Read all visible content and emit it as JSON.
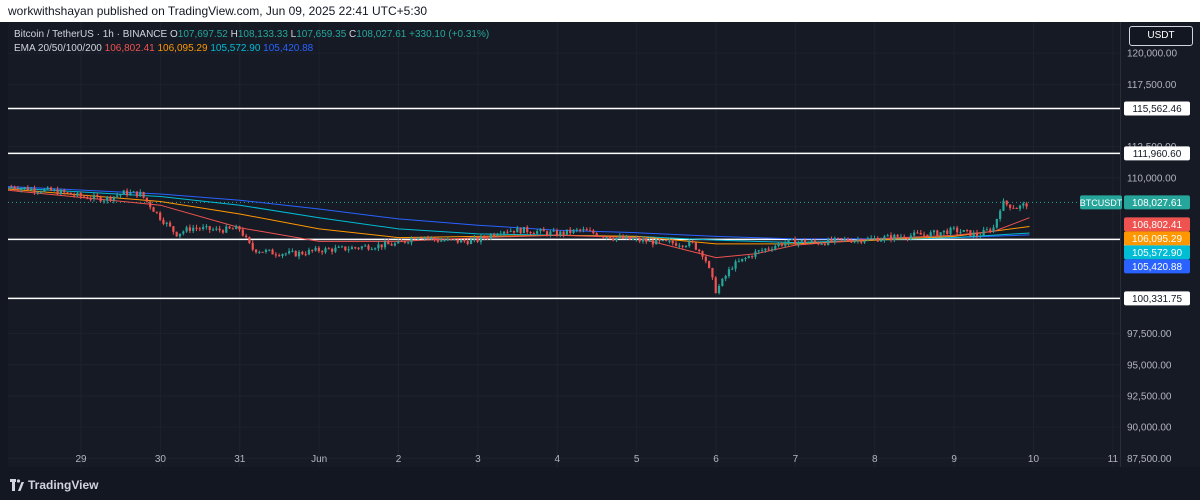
{
  "header": {
    "publisher_text": "workwithshayan published on TradingView.com, Jun 09, 2025 22:41 UTC+5:30"
  },
  "legend": {
    "symbol": "Bitcoin / TetherUS · 1h · BINANCE",
    "ohlc": [
      {
        "label": "O",
        "value": "107,697.52"
      },
      {
        "label": "H",
        "value": "108,133.33"
      },
      {
        "label": "L",
        "value": "107,659.35"
      },
      {
        "label": "C",
        "value": "108,027.61"
      }
    ],
    "change": "+330.10 (+0.31%)",
    "ema_title": "EMA 20/50/100/200",
    "ema_values": [
      "106,802.41",
      "106,095.29",
      "105,572.90",
      "105,420.88"
    ]
  },
  "currency_button": "USDT",
  "footer": {
    "brand": "TradingView"
  },
  "colors": {
    "up": "#26a69a",
    "down": "#ef5350",
    "ema20": "#ef5350",
    "ema50": "#ff9800",
    "ema100": "#00bcd4",
    "ema200": "#2962ff"
  },
  "chart_data": {
    "type": "candlestick",
    "symbol": "BTCUSDT",
    "ylim": [
      86800,
      122500
    ],
    "y_ticks": [
      "120,000.00",
      "117,500.00",
      "112,500.00",
      "110,000.00",
      "97,500.00",
      "95,000.00",
      "92,500.00",
      "90,000.00",
      "87,500.00"
    ],
    "y_tick_values": [
      120000,
      117500,
      112500,
      110000,
      97500,
      95000,
      92500,
      90000,
      87500
    ],
    "x_ticks": [
      "29",
      "30",
      "31",
      "Jun",
      "2",
      "3",
      "4",
      "5",
      "6",
      "7",
      "8",
      "9",
      "10",
      "11"
    ],
    "x_tick_days": [
      0,
      1,
      2,
      3,
      4,
      5,
      6,
      7,
      8,
      9,
      10,
      11,
      12,
      13
    ],
    "x_range_days": [
      -0.92,
      13.09
    ],
    "horizontal_levels": [
      {
        "label": "115,562.46",
        "value": 115562.46
      },
      {
        "label": "111,960.60",
        "value": 111960.6
      },
      {
        "label": "105,065.62",
        "value": 105065.62
      },
      {
        "label": "100,331.75",
        "value": 100331.75
      }
    ],
    "last_price": {
      "label": "BTCUSDT",
      "value": "108,027.61",
      "num": 108027.61
    },
    "ema_labels": [
      {
        "value": "106,802.41",
        "num": 106802.41,
        "color": "#ef5350"
      },
      {
        "value": "106,095.29",
        "num": 106095.29,
        "color": "#ff9800"
      },
      {
        "value": "105,572.90",
        "num": 105572.9,
        "color": "#00bcd4"
      },
      {
        "value": "105,420.88",
        "num": 105420.88,
        "color": "#2962ff"
      }
    ],
    "price_path": [
      [
        -0.92,
        109300
      ],
      [
        -0.6,
        109100
      ],
      [
        -0.3,
        108900
      ],
      [
        0.0,
        108500
      ],
      [
        0.3,
        108300
      ],
      [
        0.55,
        108800
      ],
      [
        0.75,
        108700
      ],
      [
        1.0,
        106800
      ],
      [
        1.2,
        105500
      ],
      [
        1.4,
        106000
      ],
      [
        1.7,
        105800
      ],
      [
        2.0,
        105900
      ],
      [
        2.15,
        104300
      ],
      [
        2.4,
        104000
      ],
      [
        2.7,
        103900
      ],
      [
        3.0,
        104200
      ],
      [
        3.3,
        104300
      ],
      [
        3.6,
        104500
      ],
      [
        4.0,
        104700
      ],
      [
        4.25,
        105400
      ],
      [
        4.5,
        105000
      ],
      [
        4.8,
        104900
      ],
      [
        5.0,
        105000
      ],
      [
        5.3,
        105800
      ],
      [
        5.6,
        105800
      ],
      [
        6.0,
        105500
      ],
      [
        6.3,
        105800
      ],
      [
        6.7,
        105200
      ],
      [
        7.0,
        105000
      ],
      [
        7.3,
        104800
      ],
      [
        7.7,
        104700
      ],
      [
        7.85,
        103800
      ],
      [
        8.0,
        100900
      ],
      [
        8.2,
        102900
      ],
      [
        8.5,
        104000
      ],
      [
        8.8,
        104700
      ],
      [
        9.0,
        104900
      ],
      [
        9.3,
        104800
      ],
      [
        9.6,
        105000
      ],
      [
        10.0,
        105100
      ],
      [
        10.3,
        105300
      ],
      [
        10.7,
        105500
      ],
      [
        11.0,
        105800
      ],
      [
        11.3,
        105400
      ],
      [
        11.5,
        106000
      ],
      [
        11.6,
        108000
      ],
      [
        11.8,
        107600
      ],
      [
        11.95,
        108000
      ]
    ],
    "ema20_path": [
      [
        -0.92,
        109000
      ],
      [
        1.0,
        107800
      ],
      [
        2.0,
        106000
      ],
      [
        3.0,
        104900
      ],
      [
        4.0,
        104900
      ],
      [
        5.0,
        105200
      ],
      [
        6.0,
        105400
      ],
      [
        7.0,
        105200
      ],
      [
        8.0,
        103600
      ],
      [
        8.5,
        103900
      ],
      [
        9.0,
        104600
      ],
      [
        10.0,
        105100
      ],
      [
        11.0,
        105400
      ],
      [
        11.5,
        105700
      ],
      [
        11.95,
        106800
      ]
    ],
    "ema50_path": [
      [
        -0.92,
        109100
      ],
      [
        1.0,
        108100
      ],
      [
        2.0,
        107100
      ],
      [
        3.0,
        105900
      ],
      [
        4.0,
        105200
      ],
      [
        5.0,
        105300
      ],
      [
        6.0,
        105400
      ],
      [
        7.0,
        105300
      ],
      [
        8.0,
        104700
      ],
      [
        9.0,
        104700
      ],
      [
        10.0,
        105000
      ],
      [
        11.0,
        105300
      ],
      [
        11.95,
        106095
      ]
    ],
    "ema100_path": [
      [
        -0.92,
        109200
      ],
      [
        1.0,
        108500
      ],
      [
        2.0,
        107800
      ],
      [
        3.0,
        106800
      ],
      [
        4.0,
        105900
      ],
      [
        5.0,
        105500
      ],
      [
        6.0,
        105400
      ],
      [
        7.0,
        105300
      ],
      [
        8.0,
        105000
      ],
      [
        9.0,
        104800
      ],
      [
        10.0,
        105000
      ],
      [
        11.0,
        105200
      ],
      [
        11.95,
        105573
      ]
    ],
    "ema200_path": [
      [
        -0.92,
        109300
      ],
      [
        1.0,
        108700
      ],
      [
        2.0,
        108200
      ],
      [
        3.0,
        107500
      ],
      [
        4.0,
        106700
      ],
      [
        5.0,
        106200
      ],
      [
        6.0,
        105800
      ],
      [
        7.0,
        105600
      ],
      [
        8.0,
        105300
      ],
      [
        9.0,
        105100
      ],
      [
        10.0,
        105100
      ],
      [
        11.0,
        105200
      ],
      [
        11.95,
        105421
      ]
    ]
  }
}
